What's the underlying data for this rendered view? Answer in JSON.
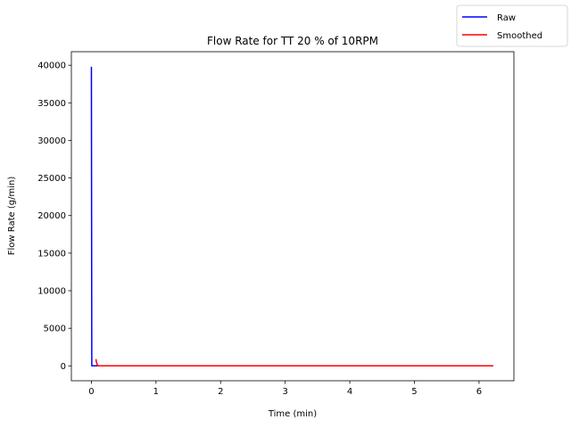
{
  "chart_data": {
    "type": "line",
    "title": "Flow Rate for TT 20 % of 10RPM",
    "xlabel": "Time (min)",
    "ylabel": "Flow Rate (g/min)",
    "xlim": [
      -0.31,
      6.54
    ],
    "ylim": [
      -1980,
      41800
    ],
    "xticks": [
      0,
      1,
      2,
      3,
      4,
      5,
      6
    ],
    "xtick_labels": [
      "0",
      "1",
      "2",
      "3",
      "4",
      "5",
      "6"
    ],
    "yticks": [
      0,
      5000,
      10000,
      15000,
      20000,
      25000,
      30000,
      35000,
      40000
    ],
    "ytick_labels": [
      "0",
      "5000",
      "10000",
      "15000",
      "20000",
      "25000",
      "30000",
      "35000",
      "40000"
    ],
    "grid": false,
    "legend_position": "top-right",
    "series": [
      {
        "name": "Raw",
        "color": "#0000ff",
        "x": [
          0,
          0.003,
          0.006,
          0.02,
          0.1,
          1,
          2,
          3,
          4,
          5,
          6,
          6.22
        ],
        "y": [
          39800,
          20000,
          0,
          0,
          0,
          0,
          0,
          0,
          0,
          0,
          0,
          0
        ]
      },
      {
        "name": "Smoothed",
        "color": "#ff0000",
        "x": [
          0.07,
          0.08,
          0.1,
          0.5,
          1,
          2,
          3,
          4,
          5,
          6,
          6.22
        ],
        "y": [
          900,
          400,
          0,
          0,
          0,
          0,
          0,
          0,
          0,
          0,
          0
        ]
      }
    ]
  }
}
